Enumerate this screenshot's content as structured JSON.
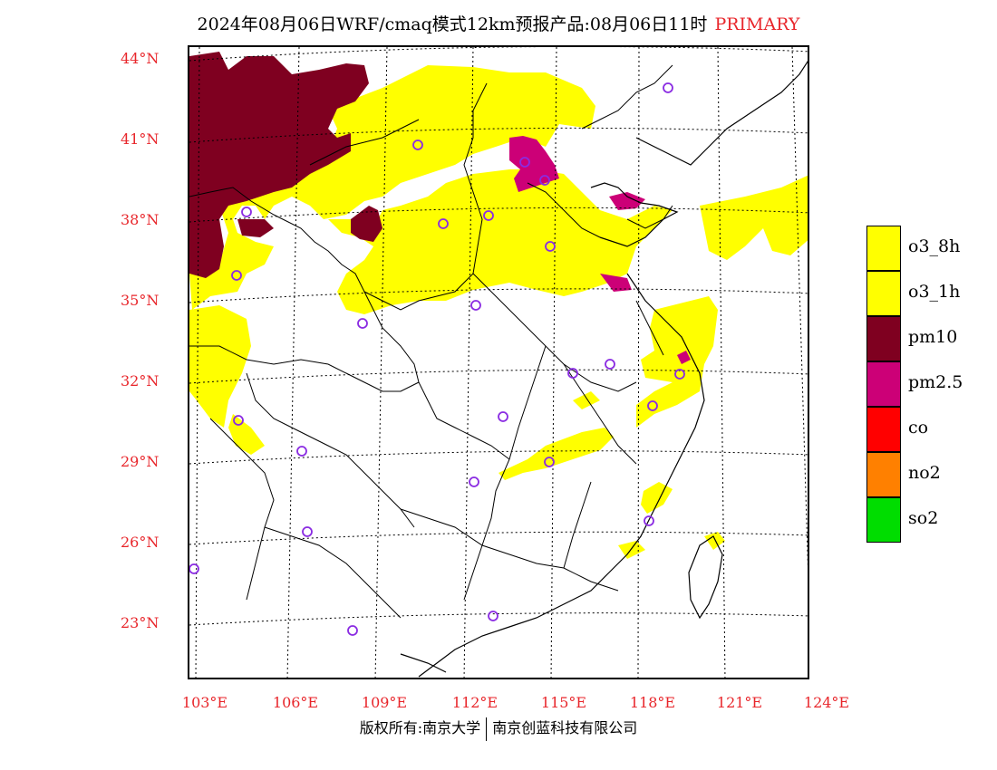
{
  "title": {
    "main": "2024年08月06日WRF/cmaq模式12km预报产品:08月06日11时",
    "tag": "PRIMARY"
  },
  "axes": {
    "lat_labels": [
      "44°N",
      "41°N",
      "38°N",
      "35°N",
      "32°N",
      "29°N",
      "26°N",
      "23°N"
    ],
    "lon_labels": [
      "103°E",
      "106°E",
      "109°E",
      "112°E",
      "115°E",
      "118°E",
      "121°E",
      "124°E"
    ]
  },
  "legend": [
    {
      "label": "o3_8h",
      "color": "#ffff00"
    },
    {
      "label": "o3_1h",
      "color": "#ffff00"
    },
    {
      "label": "pm10",
      "color": "#7f0020"
    },
    {
      "label": "pm2.5",
      "color": "#cc0077"
    },
    {
      "label": "co",
      "color": "#ff0000"
    },
    {
      "label": "no2",
      "color": "#ff8000"
    },
    {
      "label": "so2",
      "color": "#00dd00"
    }
  ],
  "footer": {
    "left": "版权所有:南京大学",
    "right": "南京创蓝科技有限公司"
  },
  "map": {
    "colors": {
      "o3": "#ffff00",
      "pm10": "#7f0020",
      "pm25": "#cc0077",
      "station": "#8a2be2",
      "border": "#000000",
      "grid": "#000000"
    },
    "stations_icon": "circle-icon"
  }
}
